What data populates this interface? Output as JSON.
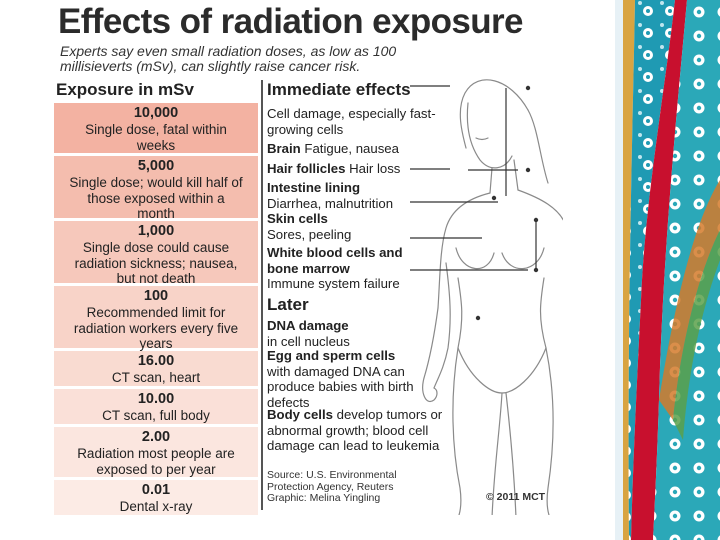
{
  "infographic": {
    "title": "Effects of radiation exposure",
    "subtitle": "Experts say even small radiation doses, as low as 100 millisieverts (mSv), can slightly raise cancer risk.",
    "exposure_heading": "Exposure in mSv",
    "exposure_levels": [
      {
        "value": "10,000",
        "description": "Single dose, fatal within weeks",
        "color": "#f3b2a2"
      },
      {
        "value": "5,000",
        "description": "Single dose; would kill half of those exposed within a month",
        "color": "#f4bdae"
      },
      {
        "value": "1,000",
        "description": "Single dose could cause radiation sickness; nausea, but not death",
        "color": "#f6c8bb"
      },
      {
        "value": "100",
        "description": "Recommended limit for radiation workers every five years",
        "color": "#f8d3c8"
      },
      {
        "value": "16.00",
        "description": "CT scan, heart",
        "color": "#f9dbd1"
      },
      {
        "value": "10.00",
        "description": "CT scan, full body",
        "color": "#fae0d8"
      },
      {
        "value": "2.00",
        "description": "Radiation most people are exposed to per year",
        "color": "#fbe6df"
      },
      {
        "value": "0.01",
        "description": "Dental x-ray",
        "color": "#fcebe5"
      }
    ],
    "immediate_heading": "Immediate effects",
    "immediate_intro": "Cell damage, especially fast-growing cells",
    "immediate_effects": [
      {
        "organ": "Brain",
        "effect": "Fatigue, nausea"
      },
      {
        "organ": "Hair follicles",
        "effect": "Hair loss"
      },
      {
        "organ": "Intestine lining",
        "effect": "Diarrhea, malnutrition"
      },
      {
        "organ": "Skin cells",
        "effect": "Sores, peeling"
      },
      {
        "organ": "White blood cells and bone marrow",
        "effect": "Immune system failure"
      }
    ],
    "later_heading": "Later",
    "later_effects": [
      {
        "organ": "DNA damage",
        "effect": "in cell nucleus"
      },
      {
        "organ": "Egg and sperm cells",
        "effect": "with damaged DNA can produce babies with birth defects"
      },
      {
        "organ": "Body cells",
        "effect": "develop tumors or abnormal growth; blood cell damage can lead to leukemia"
      }
    ],
    "source": "Source: U.S. Environmental Protection Agency, Reuters Graphic: Melina Yingling",
    "copyright": "© 2011 MCT"
  },
  "colors": {
    "accent_teal": "#1f9ab3",
    "accent_red": "#c8102e",
    "accent_gold": "#d9a441"
  },
  "icons": [
    "human-body-figure-icon",
    "decorative-strip-icon"
  ]
}
